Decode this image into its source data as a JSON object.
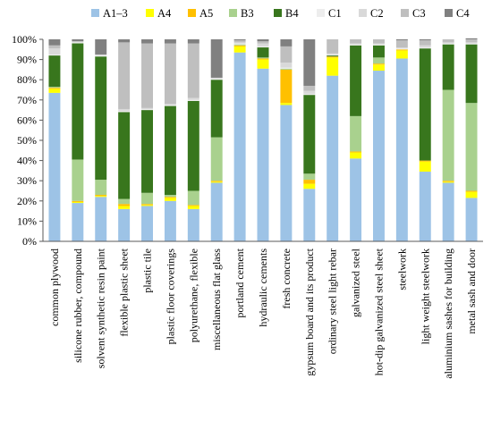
{
  "chart_data": {
    "type": "bar",
    "stacked": true,
    "percent_stacked": true,
    "title": "",
    "xlabel": "",
    "ylabel": "",
    "ylim": [
      0,
      100
    ],
    "y_ticks": [
      "0%",
      "10%",
      "20%",
      "30%",
      "40%",
      "50%",
      "60%",
      "70%",
      "80%",
      "90%",
      "100%"
    ],
    "grid": false,
    "legend_position": "top",
    "categories": [
      "common plywood",
      "silicone rubber, compound",
      "solvent synthetic resin paint",
      "flexible plastic sheet",
      "plastic tile",
      "plastic floor coverings",
      "polyurethane, flexible",
      "miscellaneous flat glass",
      "portland cement",
      "hydraulic cements",
      "fresh concrete",
      "gypsum board and its product",
      "ordinary steel light rebar",
      "galvanized steel",
      "hot-dip galvanized steel sheet",
      "steelwork",
      "light weight steelwork",
      "aluminium sashes for building",
      "metal sash and door"
    ],
    "series": [
      {
        "name": "A1–3",
        "color": "#9DC3E6",
        "values": [
          73.5,
          19,
          22,
          16,
          17.5,
          20,
          16,
          29,
          93.5,
          85.5,
          67.5,
          26,
          82,
          41,
          84.5,
          90.5,
          34.5,
          29,
          21.5
        ]
      },
      {
        "name": "A4",
        "color": "#FFFF00",
        "values": [
          2,
          0.5,
          0.5,
          1.5,
          0.5,
          1.5,
          1.5,
          0.5,
          3,
          4.5,
          1,
          2.5,
          9,
          3,
          3,
          4,
          5,
          0.5,
          3
        ]
      },
      {
        "name": "A5",
        "color": "#FFC000",
        "values": [
          0.5,
          0.5,
          0.5,
          1,
          0.5,
          0.5,
          0.5,
          0.5,
          0.5,
          0.5,
          16.5,
          2,
          0.5,
          0.5,
          0.5,
          0.5,
          0.5,
          0.5,
          0.5
        ]
      },
      {
        "name": "B3",
        "color": "#A9D18E",
        "values": [
          0.5,
          20.5,
          7.5,
          2.5,
          5.5,
          1,
          7,
          21.5,
          0.5,
          0.5,
          0.5,
          3,
          0,
          17.5,
          3,
          0,
          0,
          45,
          43.5
        ]
      },
      {
        "name": "B4",
        "color": "#38761D",
        "values": [
          15.5,
          57.5,
          61,
          43,
          41,
          44,
          44.5,
          28.5,
          0,
          5,
          0,
          39,
          0.5,
          35,
          6,
          0,
          55.5,
          22.5,
          29
        ]
      },
      {
        "name": "C1",
        "color": "#EDEDED",
        "values": [
          0.5,
          0.5,
          0.5,
          0.5,
          0.5,
          0.5,
          0.5,
          0.5,
          0.5,
          0.5,
          0.5,
          0.5,
          0.5,
          0.5,
          0.5,
          0.5,
          0.5,
          0.5,
          0.5
        ]
      },
      {
        "name": "C2",
        "color": "#D9D9D9",
        "values": [
          3,
          0.5,
          0.5,
          1,
          0.5,
          0.5,
          1,
          0.5,
          0.5,
          1.5,
          2.5,
          1.5,
          0.5,
          0.5,
          0.5,
          0.5,
          1,
          0.5,
          0.5
        ]
      },
      {
        "name": "C3",
        "color": "#BFBFBF",
        "values": [
          1.5,
          0,
          0,
          33,
          32,
          30,
          27,
          0,
          1,
          1,
          8,
          2.5,
          7,
          2,
          2,
          3.5,
          2.5,
          1.5,
          1.5
        ]
      },
      {
        "name": "C4",
        "color": "#808080",
        "values": [
          3,
          1,
          7.5,
          1.5,
          2,
          2,
          2,
          19,
          0.5,
          1,
          3.5,
          23,
          0,
          0,
          0,
          0.5,
          0.5,
          0,
          0.5
        ]
      }
    ]
  }
}
